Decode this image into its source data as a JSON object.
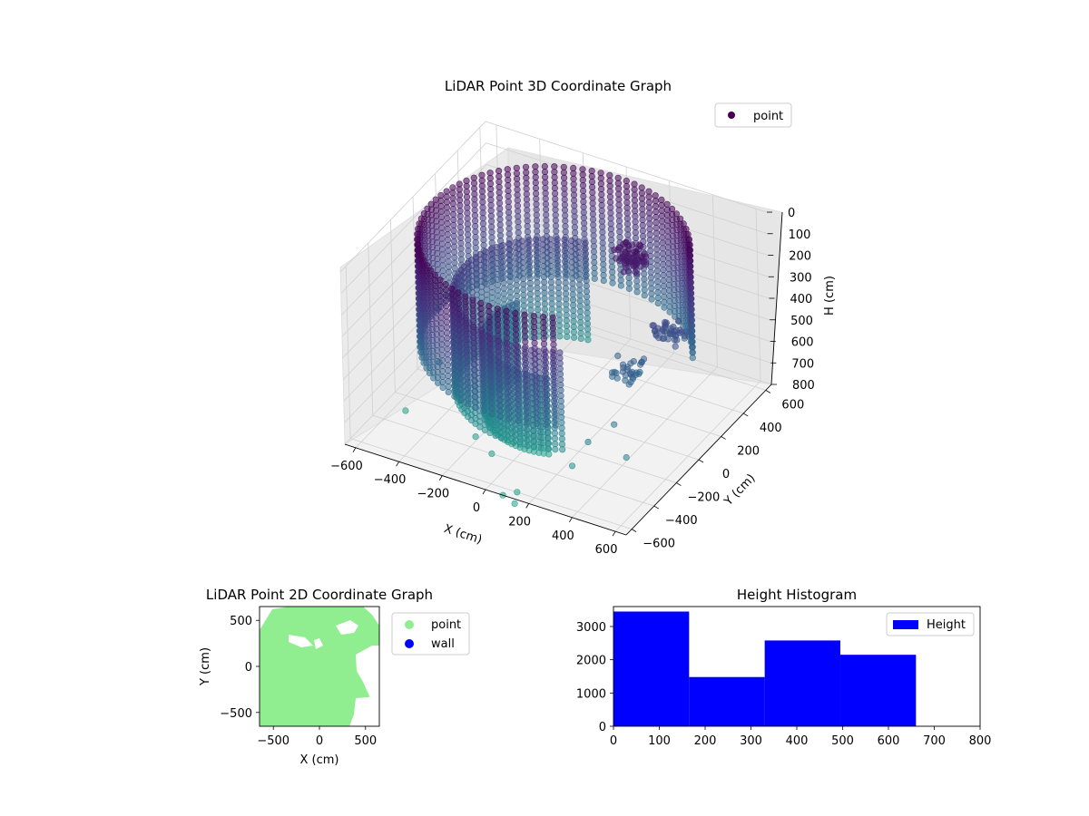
{
  "chart_data": [
    {
      "type": "scatter3d",
      "title": "LiDAR Point 3D Coordinate Graph",
      "xlabel": "X (cm)",
      "ylabel": "Y (cm)",
      "zlabel": "H (cm)",
      "xlim": [
        -650,
        650
      ],
      "ylim": [
        -650,
        650
      ],
      "zlim": [
        800,
        0
      ],
      "xticks": [
        -600,
        -400,
        -200,
        0,
        200,
        400,
        600
      ],
      "yticks": [
        -600,
        -400,
        -200,
        0,
        200,
        400,
        600
      ],
      "zticks": [
        0,
        100,
        200,
        300,
        400,
        500,
        600,
        700,
        800
      ],
      "legend": [
        "point"
      ],
      "legend_position": "upper right",
      "colormap": "viridis",
      "grid": true,
      "series": [
        {
          "name": "point",
          "description_points": "dense ring/arc of points around the origin plus interior clusters",
          "rings": [
            {
              "radius": 560,
              "angle_start": 25,
              "angle_end": 300,
              "h_min": 0,
              "h_max": 500
            },
            {
              "radius": 420,
              "angle_start": 100,
              "angle_end": 300,
              "h_min": 250,
              "h_max": 700
            },
            {
              "radius": 300,
              "angle_start": 150,
              "angle_end": 290,
              "h_min": 450,
              "h_max": 800
            }
          ],
          "clusters": [
            {
              "x": 250,
              "y": 200,
              "h": 100,
              "n": 60
            },
            {
              "x": 450,
              "y": 150,
              "h": 350,
              "n": 40
            },
            {
              "x": 350,
              "y": -50,
              "h": 450,
              "n": 30
            }
          ],
          "outliers": [
            {
              "x": -580,
              "y": 150,
              "h": 520
            },
            {
              "x": -600,
              "y": 100,
              "h": 560
            },
            {
              "x": -520,
              "y": -50,
              "h": 700
            },
            {
              "x": -550,
              "y": -300,
              "h": 800
            },
            {
              "x": -200,
              "y": -350,
              "h": 780
            },
            {
              "x": -100,
              "y": -400,
              "h": 800
            },
            {
              "x": 120,
              "y": -600,
              "h": 800
            },
            {
              "x": 80,
              "y": -650,
              "h": 800
            },
            {
              "x": 150,
              "y": -680,
              "h": 800
            },
            {
              "x": 300,
              "y": -450,
              "h": 700
            },
            {
              "x": 350,
              "y": -400,
              "h": 600
            },
            {
              "x": 420,
              "y": -300,
              "h": 550
            },
            {
              "x": 500,
              "y": -350,
              "h": 650
            }
          ]
        }
      ]
    },
    {
      "type": "scatter",
      "title": "LiDAR Point 2D Coordinate Graph",
      "xlabel": "X (cm)",
      "ylabel": "Y (cm)",
      "xlim": [
        -650,
        650
      ],
      "ylim": [
        -650,
        650
      ],
      "xticks": [
        -500,
        0,
        500
      ],
      "yticks": [
        -500,
        0,
        500
      ],
      "legend": [
        "point",
        "wall"
      ],
      "legend_position": "outside right",
      "series": [
        {
          "name": "point",
          "color": "#90ee90"
        },
        {
          "name": "wall",
          "color": "#0000ff"
        }
      ]
    },
    {
      "type": "bar",
      "title": "Height Histogram",
      "xlim": [
        0,
        800
      ],
      "ylim": [
        0,
        3600
      ],
      "xticks": [
        0,
        100,
        200,
        300,
        400,
        500,
        600,
        700,
        800
      ],
      "yticks": [
        0,
        1000,
        2000,
        3000
      ],
      "legend": [
        "Height"
      ],
      "legend_position": "upper right",
      "series": [
        {
          "name": "Height",
          "color": "#0000ff",
          "bins": [
            [
              0,
              165,
              3450
            ],
            [
              165,
              330,
              1480
            ],
            [
              330,
              495,
              2580
            ],
            [
              495,
              660,
              2150
            ]
          ]
        }
      ]
    }
  ]
}
